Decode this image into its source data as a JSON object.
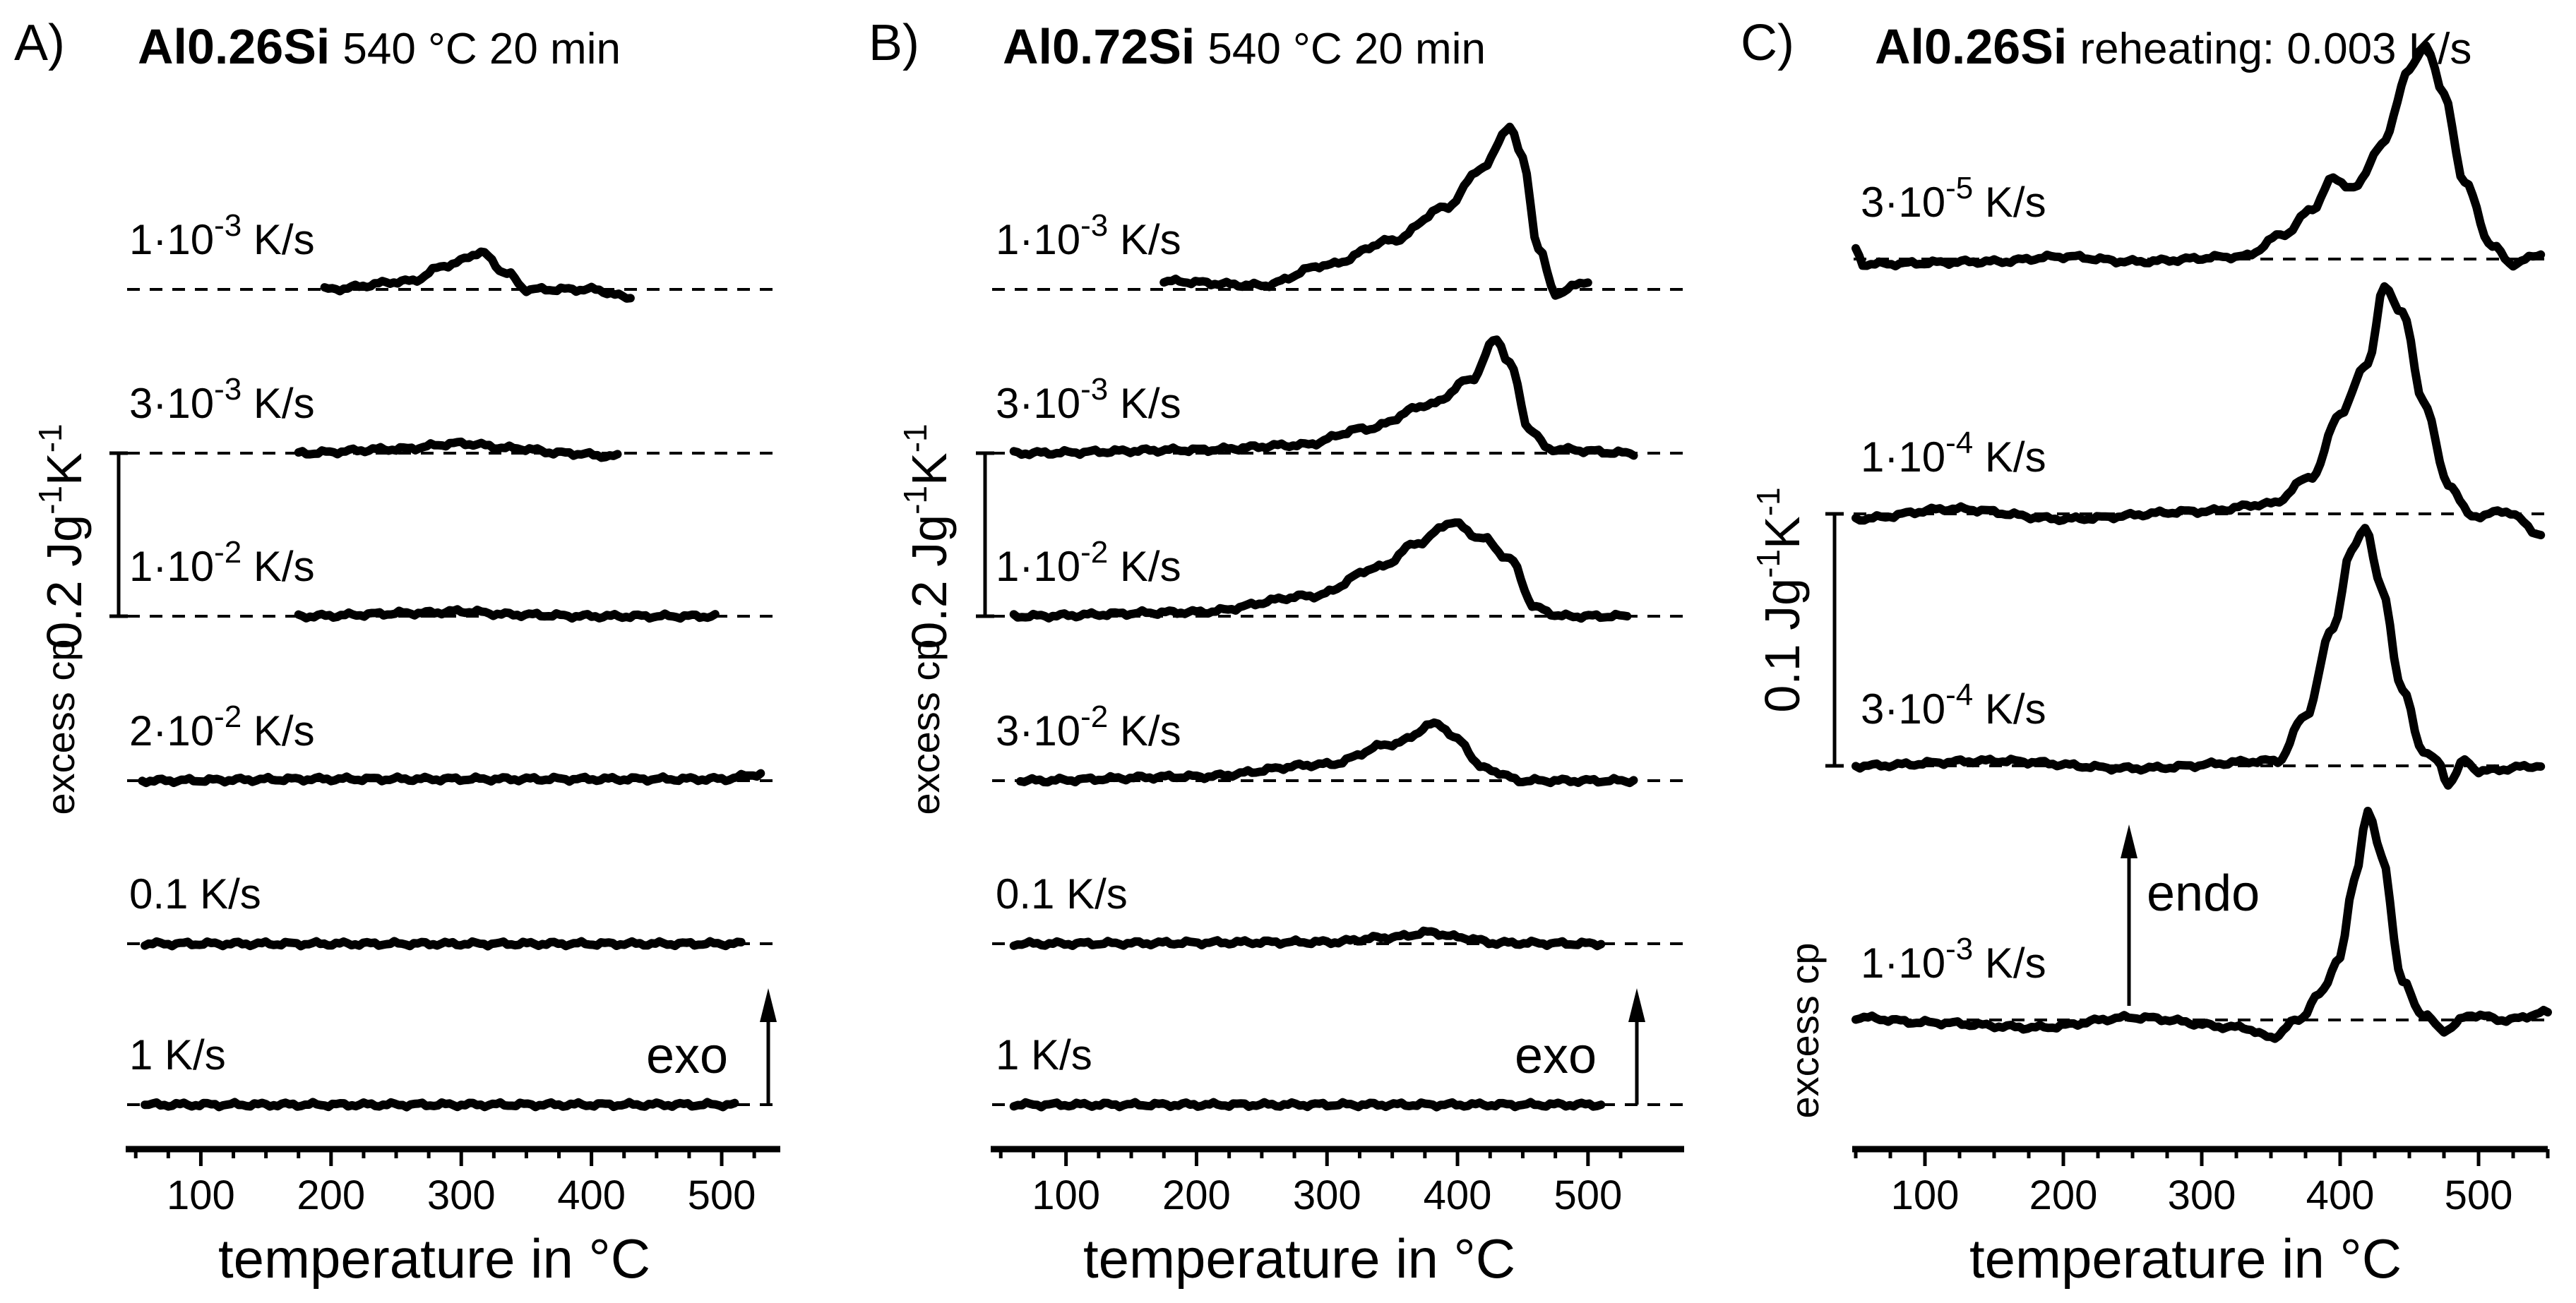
{
  "chart_data": [
    {
      "id": "A",
      "type": "line",
      "panel_label": "A)",
      "title_bold": "Al0.26Si",
      "title_rest": "540 °C  20 min",
      "xlabel": "temperature in °C",
      "ylabel": "excess cp",
      "xlim": [
        45,
        545
      ],
      "xticks": [
        100,
        200,
        300,
        400,
        500
      ],
      "scale_bar": "0.2 Jg-1K-1",
      "scale_value": 0.2,
      "annotation": {
        "text": "exo",
        "direction": "down-is-exothermic",
        "arrow": "up"
      },
      "series": [
        {
          "name": "1·10-3 K/s",
          "rate": "1·10",
          "exp": "-3",
          "unit": "K/s",
          "x_range": [
            195,
            430
          ],
          "points": [
            [
              195,
              0
            ],
            [
              260,
              0.01
            ],
            [
              290,
              0.03
            ],
            [
              315,
              0.045
            ],
            [
              335,
              0.02
            ],
            [
              350,
              0
            ],
            [
              400,
              0
            ],
            [
              430,
              -0.01
            ]
          ]
        },
        {
          "name": "3·10-3 K/s",
          "rate": "3·10",
          "exp": "-3",
          "unit": "K/s",
          "x_range": [
            175,
            420
          ],
          "points": [
            [
              175,
              0
            ],
            [
              250,
              0.005
            ],
            [
              300,
              0.012
            ],
            [
              340,
              0.006
            ],
            [
              380,
              0
            ],
            [
              420,
              -0.004
            ]
          ]
        },
        {
          "name": "1·10-2 K/s",
          "rate": "1·10",
          "exp": "-2",
          "unit": "K/s",
          "x_range": [
            175,
            495
          ],
          "points": [
            [
              175,
              0
            ],
            [
              270,
              0.004
            ],
            [
              300,
              0.006
            ],
            [
              340,
              0.002
            ],
            [
              400,
              0
            ],
            [
              495,
              0
            ]
          ]
        },
        {
          "name": "2·10-2 K/s",
          "rate": "2·10",
          "exp": "-2",
          "unit": "K/s",
          "x_range": [
            55,
            530
          ],
          "points": [
            [
              55,
              0
            ],
            [
              200,
              0.002
            ],
            [
              350,
              0.002
            ],
            [
              500,
              0.002
            ],
            [
              530,
              0.008
            ]
          ]
        },
        {
          "name": "0.1 K/s",
          "rate": "0.1",
          "exp": "",
          "unit": "K/s",
          "x_range": [
            57,
            515
          ],
          "points": [
            [
              57,
              0
            ],
            [
              515,
              0
            ]
          ]
        },
        {
          "name": "1 K/s",
          "rate": "1",
          "exp": "",
          "unit": "K/s",
          "x_range": [
            57,
            510
          ],
          "points": [
            [
              57,
              0
            ],
            [
              510,
              0
            ]
          ]
        }
      ]
    },
    {
      "id": "B",
      "type": "line",
      "panel_label": "B)",
      "title_bold": "Al0.72Si",
      "title_rest": "540 °C  20 min",
      "xlabel": "temperature in °C",
      "ylabel": "excess cp",
      "xlim": [
        45,
        545
      ],
      "xticks": [
        100,
        200,
        300,
        400,
        500
      ],
      "scale_bar": "0.2 Jg-1K-1",
      "scale_value": 0.2,
      "annotation": {
        "text": "exo",
        "direction": "down-is-exothermic",
        "arrow": "up"
      },
      "series": [
        {
          "name": "1·10-3 K/s",
          "rate": "1·10",
          "exp": "-3",
          "unit": "K/s",
          "x_range": [
            175,
            500
          ],
          "points": [
            [
              175,
              0.01
            ],
            [
              250,
              0.005
            ],
            [
              300,
              0.03
            ],
            [
              350,
              0.06
            ],
            [
              390,
              0.1
            ],
            [
              420,
              0.15
            ],
            [
              440,
              0.2
            ],
            [
              450,
              0.16
            ],
            [
              462,
              0.05
            ],
            [
              475,
              -0.005
            ],
            [
              500,
              0.01
            ]
          ]
        },
        {
          "name": "3·10-3 K/s",
          "rate": "3·10",
          "exp": "-3",
          "unit": "K/s",
          "x_range": [
            60,
            535
          ],
          "points": [
            [
              60,
              0
            ],
            [
              200,
              0.004
            ],
            [
              280,
              0.01
            ],
            [
              330,
              0.03
            ],
            [
              380,
              0.06
            ],
            [
              410,
              0.09
            ],
            [
              430,
              0.14
            ],
            [
              440,
              0.11
            ],
            [
              455,
              0.03
            ],
            [
              470,
              0.005
            ],
            [
              535,
              0
            ]
          ]
        },
        {
          "name": "1·10-2 K/s",
          "rate": "1·10",
          "exp": "-2",
          "unit": "K/s",
          "x_range": [
            60,
            530
          ],
          "points": [
            [
              60,
              0
            ],
            [
              200,
              0.005
            ],
            [
              290,
              0.025
            ],
            [
              340,
              0.06
            ],
            [
              370,
              0.09
            ],
            [
              395,
              0.115
            ],
            [
              420,
              0.095
            ],
            [
              440,
              0.07
            ],
            [
              460,
              0.01
            ],
            [
              480,
              0
            ],
            [
              530,
              0
            ]
          ]
        },
        {
          "name": "3·10-2 K/s",
          "rate": "3·10",
          "exp": "-2",
          "unit": "K/s",
          "x_range": [
            65,
            535
          ],
          "points": [
            [
              65,
              0
            ],
            [
              200,
              0.005
            ],
            [
              300,
              0.02
            ],
            [
              350,
              0.045
            ],
            [
              385,
              0.07
            ],
            [
              400,
              0.05
            ],
            [
              420,
              0.015
            ],
            [
              450,
              0
            ],
            [
              535,
              0
            ]
          ]
        },
        {
          "name": "0.1 K/s",
          "rate": "0.1",
          "exp": "",
          "unit": "K/s",
          "x_range": [
            60,
            510
          ],
          "points": [
            [
              60,
              0
            ],
            [
              300,
              0.002
            ],
            [
              350,
              0.008
            ],
            [
              380,
              0.014
            ],
            [
              400,
              0.008
            ],
            [
              430,
              0.001
            ],
            [
              510,
              0
            ]
          ]
        },
        {
          "name": "1 K/s",
          "rate": "1",
          "exp": "",
          "unit": "K/s",
          "x_range": [
            60,
            510
          ],
          "points": [
            [
              60,
              0
            ],
            [
              510,
              0
            ]
          ]
        }
      ]
    },
    {
      "id": "C",
      "type": "line",
      "panel_label": "C)",
      "title_bold": "Al0.26Si",
      "title_rest": "reheating: 0.003 K/s",
      "xlabel": "temperature in °C",
      "ylabel": "excess cp",
      "xlim": [
        50,
        550
      ],
      "xticks": [
        100,
        200,
        300,
        400,
        500
      ],
      "scale_bar": "0.1 Jg-1K-1",
      "scale_value": 0.1,
      "annotation": {
        "text": "endo",
        "direction": "up-is-endothermic",
        "arrow": "up"
      },
      "series": [
        {
          "name": "3·10-5 K/s",
          "rate": "3·10",
          "exp": "-5",
          "unit": "K/s",
          "x_range": [
            50,
            550
          ],
          "points": [
            [
              50,
              0.004
            ],
            [
              55,
              -0.002
            ],
            [
              150,
              -0.001
            ],
            [
              200,
              0.001
            ],
            [
              250,
              -0.001
            ],
            [
              330,
              0.001
            ],
            [
              360,
              0.01
            ],
            [
              380,
              0.02
            ],
            [
              395,
              0.032
            ],
            [
              410,
              0.028
            ],
            [
              430,
              0.045
            ],
            [
              450,
              0.075
            ],
            [
              462,
              0.085
            ],
            [
              475,
              0.065
            ],
            [
              490,
              0.03
            ],
            [
              510,
              0.005
            ],
            [
              525,
              -0.002
            ],
            [
              545,
              0.002
            ]
          ]
        },
        {
          "name": "1·10-4 K/s",
          "rate": "1·10",
          "exp": "-4",
          "unit": "K/s",
          "x_range": [
            50,
            550
          ],
          "points": [
            [
              50,
              -0.002
            ],
            [
              120,
              0.002
            ],
            [
              200,
              -0.002
            ],
            [
              300,
              0.001
            ],
            [
              350,
              0.004
            ],
            [
              380,
              0.015
            ],
            [
              400,
              0.04
            ],
            [
              420,
              0.06
            ],
            [
              432,
              0.09
            ],
            [
              445,
              0.08
            ],
            [
              460,
              0.045
            ],
            [
              478,
              0.012
            ],
            [
              495,
              -0.001
            ],
            [
              520,
              0.001
            ],
            [
              545,
              -0.008
            ]
          ]
        },
        {
          "name": "3·10-4 K/s",
          "rate": "3·10",
          "exp": "-4",
          "unit": "K/s",
          "x_range": [
            50,
            550
          ],
          "points": [
            [
              50,
              0
            ],
            [
              150,
              0.002
            ],
            [
              250,
              -0.001
            ],
            [
              355,
              0.002
            ],
            [
              375,
              0.02
            ],
            [
              395,
              0.055
            ],
            [
              408,
              0.085
            ],
            [
              418,
              0.095
            ],
            [
              430,
              0.07
            ],
            [
              445,
              0.03
            ],
            [
              460,
              0.006
            ],
            [
              470,
              0.002
            ],
            [
              478,
              -0.007
            ],
            [
              490,
              0.002
            ],
            [
              500,
              -0.002
            ],
            [
              545,
              0
            ]
          ]
        },
        {
          "name": "1·10-3 K/s",
          "rate": "1·10",
          "exp": "-3",
          "unit": "K/s",
          "x_range": [
            50,
            550
          ],
          "points": [
            [
              50,
              0.001
            ],
            [
              100,
              -0.001
            ],
            [
              180,
              -0.003
            ],
            [
              250,
              0.001
            ],
            [
              330,
              -0.003
            ],
            [
              350,
              -0.007
            ],
            [
              370,
              0
            ],
            [
              385,
              0.01
            ],
            [
              400,
              0.025
            ],
            [
              410,
              0.055
            ],
            [
              420,
              0.083
            ],
            [
              430,
              0.065
            ],
            [
              445,
              0.015
            ],
            [
              460,
              0.002
            ],
            [
              475,
              -0.004
            ],
            [
              495,
              0.002
            ],
            [
              520,
              0
            ],
            [
              550,
              0.003
            ]
          ]
        }
      ]
    }
  ]
}
